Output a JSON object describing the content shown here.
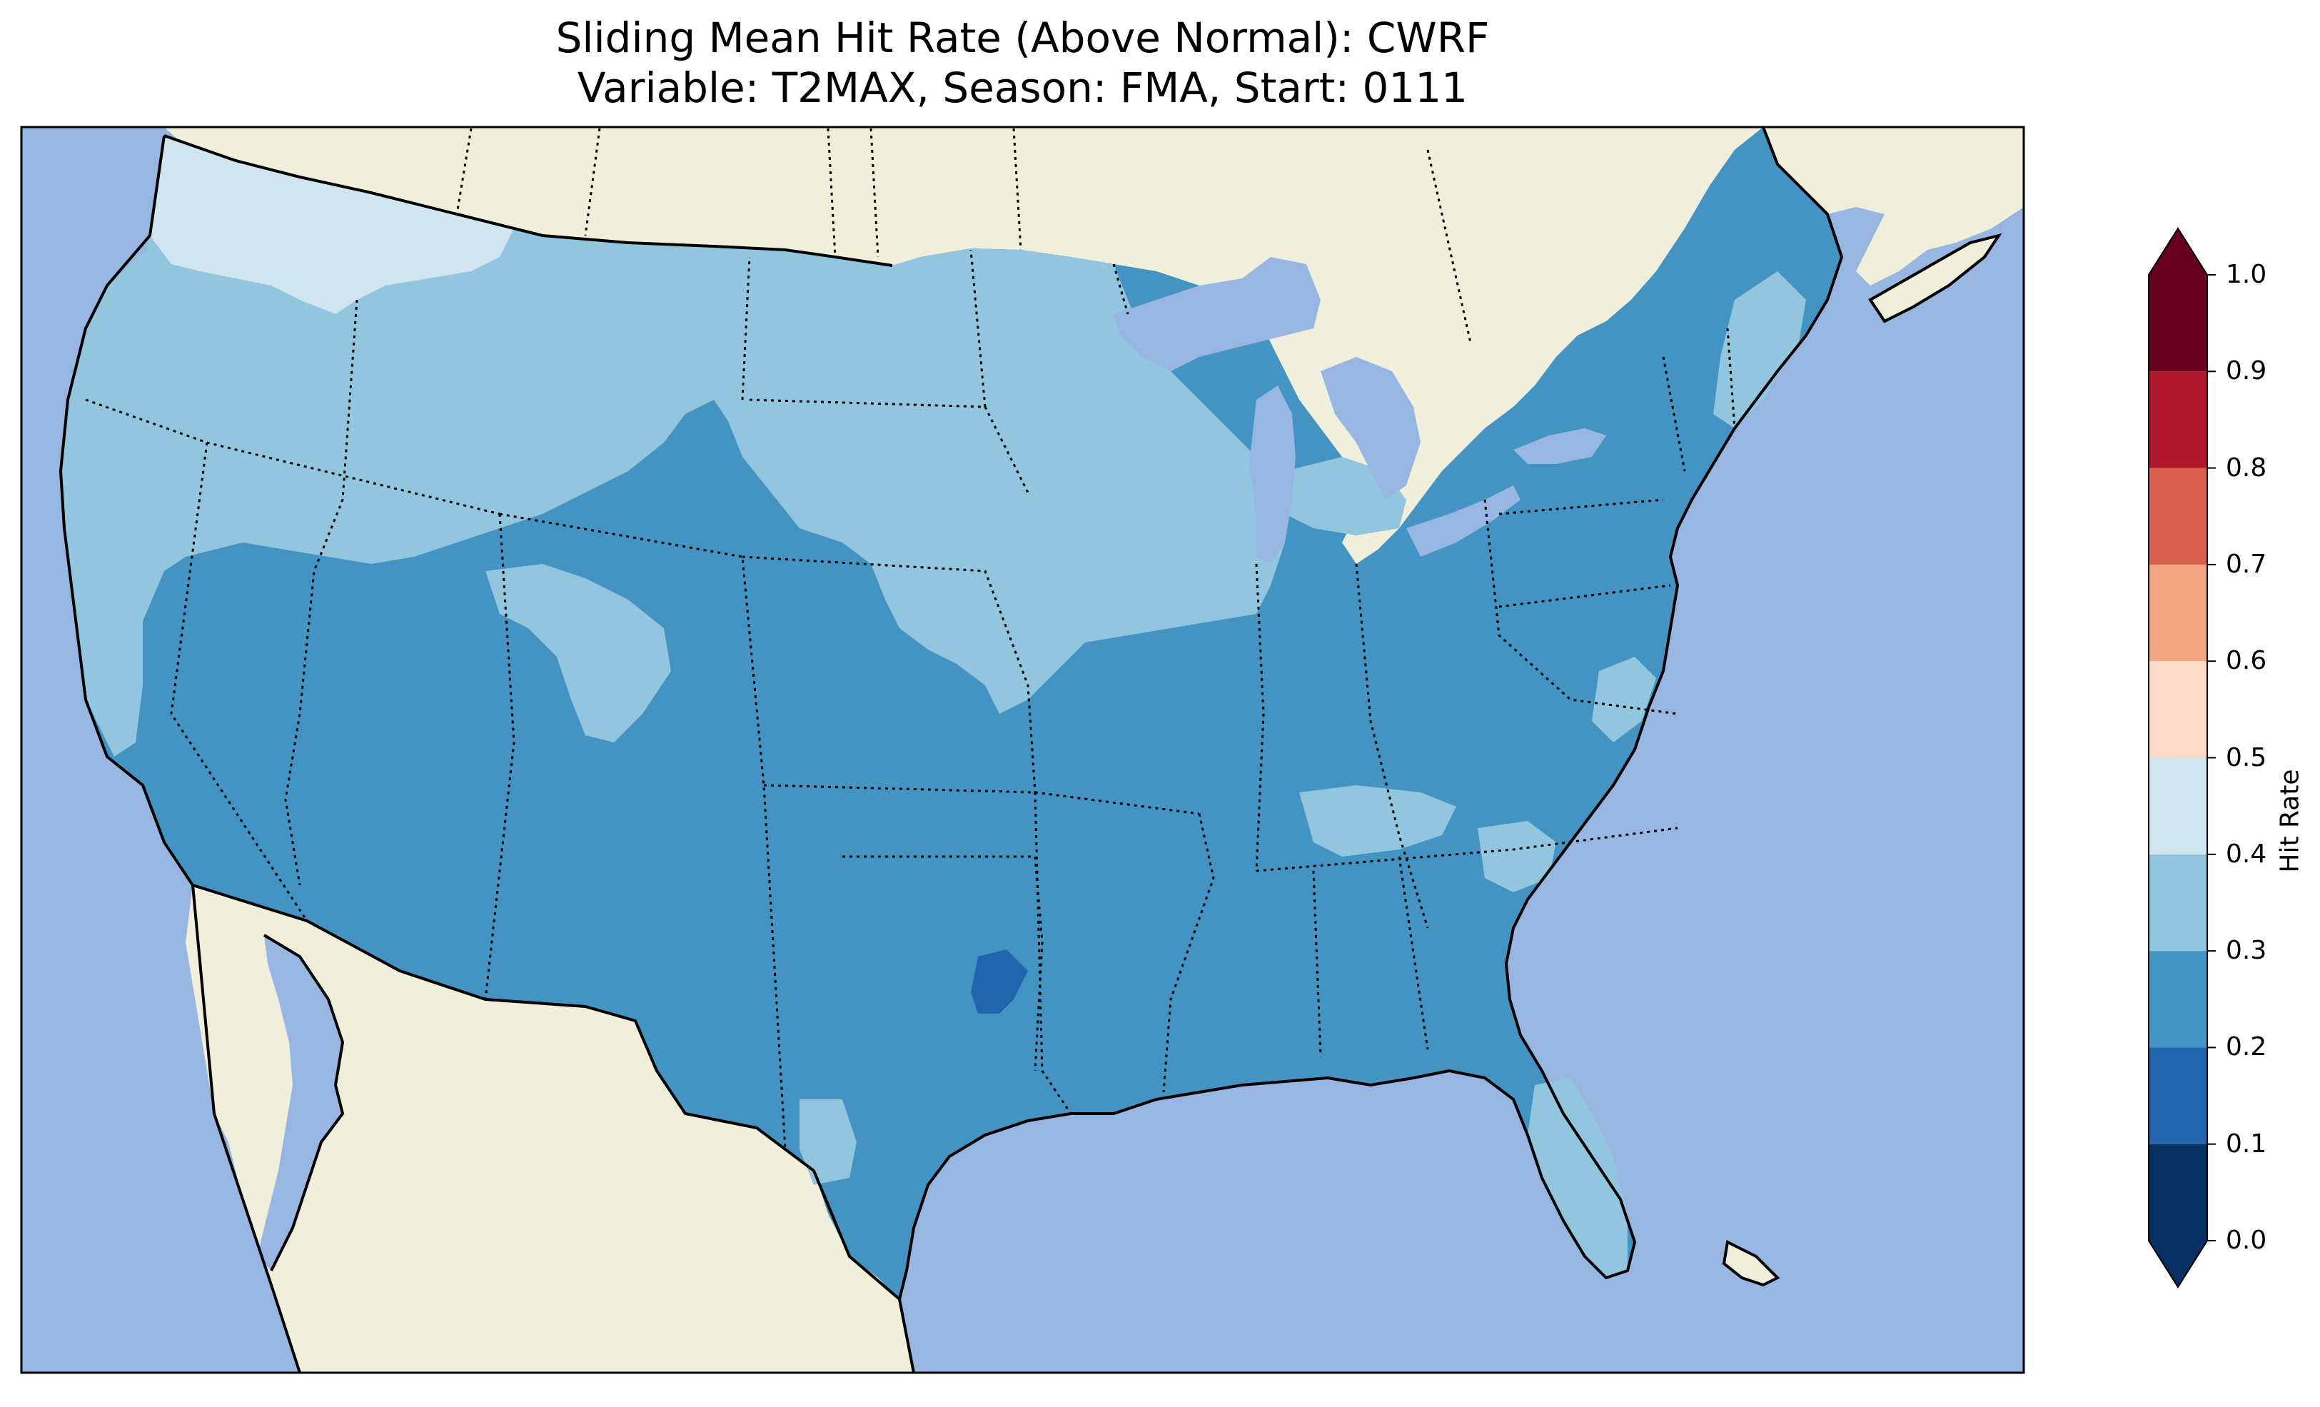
{
  "title": {
    "line1": "Sliding Mean Hit Rate (Above Normal): CWRF",
    "line2": "Variable: T2MAX, Season: FMA, Start: 0111"
  },
  "colors": {
    "ocean": "#97b6e1",
    "land": "#efefdb",
    "lake": "#97b6e1"
  },
  "colorbar": {
    "label": "Hit Rate",
    "ticks": [
      "0.0",
      "0.1",
      "0.2",
      "0.3",
      "0.4",
      "0.5",
      "0.6",
      "0.7",
      "0.8",
      "0.9",
      "1.0"
    ],
    "bins": [
      {
        "range": [
          0.0,
          0.1
        ],
        "color": "#053061"
      },
      {
        "range": [
          0.1,
          0.2
        ],
        "color": "#2166ac"
      },
      {
        "range": [
          0.2,
          0.3
        ],
        "color": "#4393c3"
      },
      {
        "range": [
          0.3,
          0.4
        ],
        "color": "#92c5de"
      },
      {
        "range": [
          0.4,
          0.5
        ],
        "color": "#d1e5f0"
      },
      {
        "range": [
          0.5,
          0.6
        ],
        "color": "#fddbc7"
      },
      {
        "range": [
          0.6,
          0.7
        ],
        "color": "#f4a582"
      },
      {
        "range": [
          0.7,
          0.8
        ],
        "color": "#d6604d"
      },
      {
        "range": [
          0.8,
          0.9
        ],
        "color": "#b2182b"
      },
      {
        "range": [
          0.9,
          1.0
        ],
        "color": "#67001f"
      }
    ],
    "extend": "both"
  }
}
